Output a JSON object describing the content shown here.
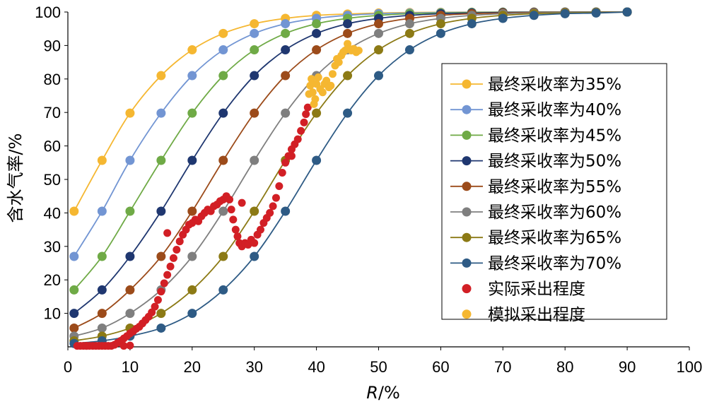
{
  "chart_data": {
    "type": "line",
    "title": "",
    "xlabel_main": "R",
    "xlabel_unit": "/%",
    "ylabel": "含水气率/%",
    "xlim": [
      0,
      100
    ],
    "ylim": [
      0,
      100
    ],
    "xticks": [
      0,
      10,
      20,
      30,
      40,
      50,
      60,
      70,
      80,
      90,
      100
    ],
    "yticks": [
      10,
      20,
      30,
      40,
      50,
      60,
      70,
      80,
      90,
      100
    ],
    "legend_position": "right",
    "model_x": [
      1,
      5.5,
      10,
      15,
      20,
      25,
      30,
      35,
      40,
      45,
      50,
      55,
      60,
      65,
      70,
      75,
      80,
      85,
      90
    ],
    "series": [
      {
        "name": "最终采收率为35%",
        "color": "#f5b731",
        "values": [
          40.5,
          55.7,
          69.8,
          81.0,
          88.7,
          93.6,
          96.5,
          98.1,
          99.0,
          99.4,
          99.7,
          99.85,
          99.92,
          99.96,
          99.98,
          99.99,
          100,
          100,
          100
        ]
      },
      {
        "name": "最终采收率为40%",
        "color": "#7295d3",
        "values": [
          27.0,
          40.5,
          55.7,
          69.8,
          81.0,
          88.7,
          93.6,
          96.5,
          98.1,
          99.0,
          99.5,
          99.7,
          99.85,
          99.92,
          99.96,
          99.98,
          100,
          100,
          100
        ]
      },
      {
        "name": "最终采收率为45%",
        "color": "#6faa46",
        "values": [
          17.0,
          27.0,
          40.5,
          55.7,
          69.8,
          81.0,
          88.7,
          93.6,
          96.5,
          98.1,
          99.0,
          99.5,
          99.7,
          99.85,
          99.92,
          99.96,
          99.98,
          100,
          100
        ]
      },
      {
        "name": "最终采收率为50%",
        "color": "#1f3770",
        "values": [
          10.0,
          17.0,
          27.0,
          40.5,
          55.7,
          69.8,
          81.0,
          88.7,
          93.6,
          96.5,
          98.1,
          99.0,
          99.5,
          99.7,
          99.85,
          99.92,
          99.96,
          99.98,
          100
        ]
      },
      {
        "name": "最终采收率为55%",
        "color": "#9c4b1a",
        "values": [
          5.6,
          10.0,
          17.0,
          27.0,
          40.5,
          55.7,
          69.8,
          81.0,
          88.7,
          93.6,
          96.5,
          98.1,
          99.0,
          99.5,
          99.7,
          99.85,
          99.92,
          99.96,
          100
        ]
      },
      {
        "name": "最终采收率为60%",
        "color": "#7f7f7f",
        "values": [
          3.2,
          5.6,
          10.0,
          17.0,
          27.0,
          40.5,
          55.7,
          69.8,
          81.0,
          88.7,
          93.6,
          96.5,
          98.1,
          99.0,
          99.5,
          99.7,
          99.85,
          99.92,
          100
        ]
      },
      {
        "name": "最终采收率为65%",
        "color": "#8c7a15",
        "values": [
          1.8,
          3.2,
          5.6,
          10.0,
          17.0,
          27.0,
          40.5,
          55.7,
          69.8,
          81.0,
          88.7,
          93.6,
          96.5,
          98.1,
          99.0,
          99.5,
          99.7,
          99.85,
          100
        ]
      },
      {
        "name": "最终采收率为70%",
        "color": "#2e5b85",
        "values": [
          1.0,
          1.8,
          3.2,
          5.6,
          10.0,
          17.0,
          27.0,
          40.5,
          55.7,
          69.8,
          81.0,
          88.7,
          93.6,
          96.5,
          98.1,
          99.0,
          99.5,
          99.7,
          100
        ]
      }
    ],
    "actual": {
      "name": "实际采出程度",
      "color": "#d21f25",
      "points": [
        [
          1.5,
          0.3
        ],
        [
          2,
          0.3
        ],
        [
          2.5,
          0.3
        ],
        [
          3,
          0.3
        ],
        [
          3.5,
          0.3
        ],
        [
          4,
          0.3
        ],
        [
          4.5,
          0.3
        ],
        [
          5,
          0.3
        ],
        [
          5.5,
          0.3
        ],
        [
          6,
          0.3
        ],
        [
          6.5,
          0.3
        ],
        [
          7,
          0.3
        ],
        [
          7.5,
          0.6
        ],
        [
          8,
          1.2
        ],
        [
          8.5,
          1.8
        ],
        [
          9,
          2.5
        ],
        [
          9.5,
          3.2
        ],
        [
          10,
          4.0
        ],
        [
          10.5,
          4.6
        ],
        [
          11,
          5.4
        ],
        [
          11.5,
          6.0
        ],
        [
          12,
          7.0
        ],
        [
          12.5,
          8.0
        ],
        [
          13,
          9.0
        ],
        [
          13.5,
          10.3
        ],
        [
          14,
          12.0
        ],
        [
          14.5,
          14.0
        ],
        [
          15,
          16.5
        ],
        [
          15.5,
          19.0
        ],
        [
          16,
          21.5
        ],
        [
          16.5,
          24.0
        ],
        [
          17,
          26.5
        ],
        [
          17.5,
          29.0
        ],
        [
          18,
          31.5
        ],
        [
          18.5,
          33.5
        ],
        [
          19,
          35.0
        ],
        [
          19.5,
          36.5
        ],
        [
          20,
          37.0
        ],
        [
          20.5,
          38.0
        ],
        [
          21,
          37.5
        ],
        [
          21.5,
          39.0
        ],
        [
          22,
          40.0
        ],
        [
          22.5,
          41.0
        ],
        [
          23,
          40.5
        ],
        [
          23.5,
          42.0
        ],
        [
          24,
          42.5
        ],
        [
          24.5,
          43.5
        ],
        [
          25,
          44.0
        ],
        [
          25.5,
          45.0
        ],
        [
          26,
          44.0
        ],
        [
          26.3,
          41.0
        ],
        [
          26.6,
          38.0
        ],
        [
          27,
          35.0
        ],
        [
          27.3,
          33.0
        ],
        [
          27.6,
          31.0
        ],
        [
          28,
          30.0
        ],
        [
          28.5,
          31.0
        ],
        [
          29,
          30.5
        ],
        [
          29.5,
          32.0
        ],
        [
          30,
          31.0
        ],
        [
          30.5,
          33.5
        ],
        [
          31,
          35.0
        ],
        [
          31.5,
          37.0
        ],
        [
          32,
          38.5
        ],
        [
          32.5,
          40.0
        ],
        [
          33,
          42.0
        ],
        [
          33.5,
          44.5
        ],
        [
          34,
          48.0
        ],
        [
          34.5,
          52.0
        ],
        [
          35,
          55.0
        ],
        [
          35.5,
          57.0
        ],
        [
          36,
          59.0
        ],
        [
          36.5,
          60.5
        ],
        [
          37,
          62.0
        ],
        [
          37.5,
          64.5
        ],
        [
          38,
          67.0
        ],
        [
          38.3,
          69.5
        ],
        [
          38.6,
          71.5
        ],
        [
          10,
          0.4
        ],
        [
          9,
          0.3
        ],
        [
          3,
          0.3
        ],
        [
          16,
          34.0
        ],
        [
          28,
          43.0
        ],
        [
          36,
          57.0
        ]
      ]
    },
    "simulated": {
      "name": "模拟采出程度",
      "color": "#f5b731",
      "points": [
        [
          38.8,
          75.5
        ],
        [
          39,
          78.0
        ],
        [
          39.2,
          80.0
        ],
        [
          39.4,
          76.0
        ],
        [
          39.6,
          72.5
        ],
        [
          39.8,
          74.0
        ],
        [
          40,
          78.5
        ],
        [
          40.3,
          80.5
        ],
        [
          40.6,
          77.0
        ],
        [
          41,
          76.0
        ],
        [
          41.3,
          78.5
        ],
        [
          41.6,
          79.5
        ],
        [
          42,
          77.5
        ],
        [
          42.3,
          78.0
        ],
        [
          42.6,
          81.5
        ],
        [
          43,
          84.0
        ],
        [
          43.3,
          86.0
        ],
        [
          43.6,
          85.0
        ],
        [
          44,
          87.0
        ],
        [
          44.3,
          88.0
        ],
        [
          44.6,
          88.5
        ],
        [
          45,
          90.5
        ],
        [
          45.3,
          89.0
        ],
        [
          45.6,
          88.5
        ],
        [
          46,
          89.0
        ],
        [
          46.4,
          88.0
        ],
        [
          46.8,
          88.5
        ]
      ]
    }
  }
}
